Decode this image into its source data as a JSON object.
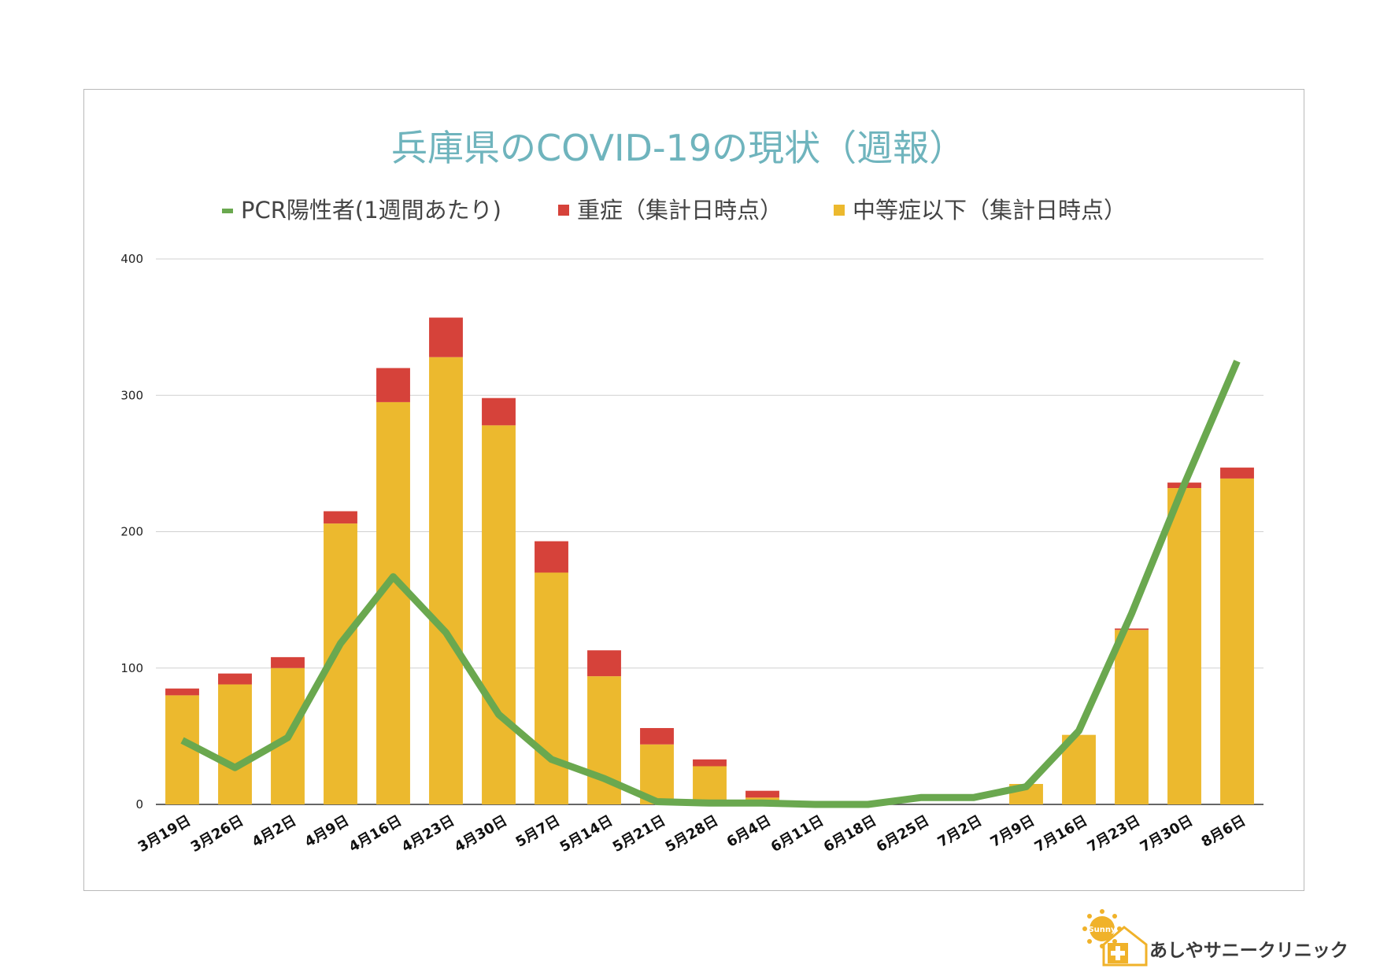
{
  "chart_data": {
    "type": "bar",
    "stacked": true,
    "title": "兵庫県のCOVID-19の現状（週報）",
    "categories": [
      "3月19日",
      "3月26日",
      "4月2日",
      "4月9日",
      "4月16日",
      "4月23日",
      "4月30日",
      "5月7日",
      "5月14日",
      "5月21日",
      "5月28日",
      "6月4日",
      "6月11日",
      "6月18日",
      "6月25日",
      "7月2日",
      "7月9日",
      "7月16日",
      "7月23日",
      "7月30日",
      "8月6日"
    ],
    "series": [
      {
        "name": "中等症以下（集計日時点）",
        "type": "bar",
        "color": "#ecb92e",
        "values": [
          80,
          88,
          100,
          206,
          295,
          328,
          278,
          170,
          94,
          44,
          28,
          5,
          0,
          0,
          0,
          0,
          15,
          51,
          128,
          232,
          239
        ]
      },
      {
        "name": "重症（集計日時点）",
        "type": "bar",
        "color": "#d6423a",
        "values": [
          5,
          8,
          8,
          9,
          25,
          29,
          20,
          23,
          19,
          12,
          5,
          5,
          0,
          0,
          0,
          0,
          0,
          0,
          1,
          4,
          8
        ]
      },
      {
        "name": "PCR陽性者(1週間あたり)",
        "type": "line",
        "color": "#6aa84f",
        "values": [
          47,
          27,
          49,
          118,
          167,
          126,
          66,
          33,
          19,
          2,
          1,
          1,
          0,
          0,
          5,
          5,
          13,
          54,
          140,
          235,
          325
        ]
      }
    ],
    "yticks": [
      0,
      100,
      200,
      300,
      400
    ],
    "ylim": [
      0,
      400
    ],
    "grid": true,
    "legend": "top"
  },
  "logo": {
    "text": "あしやサニークリニック",
    "badge": "Sunny"
  }
}
